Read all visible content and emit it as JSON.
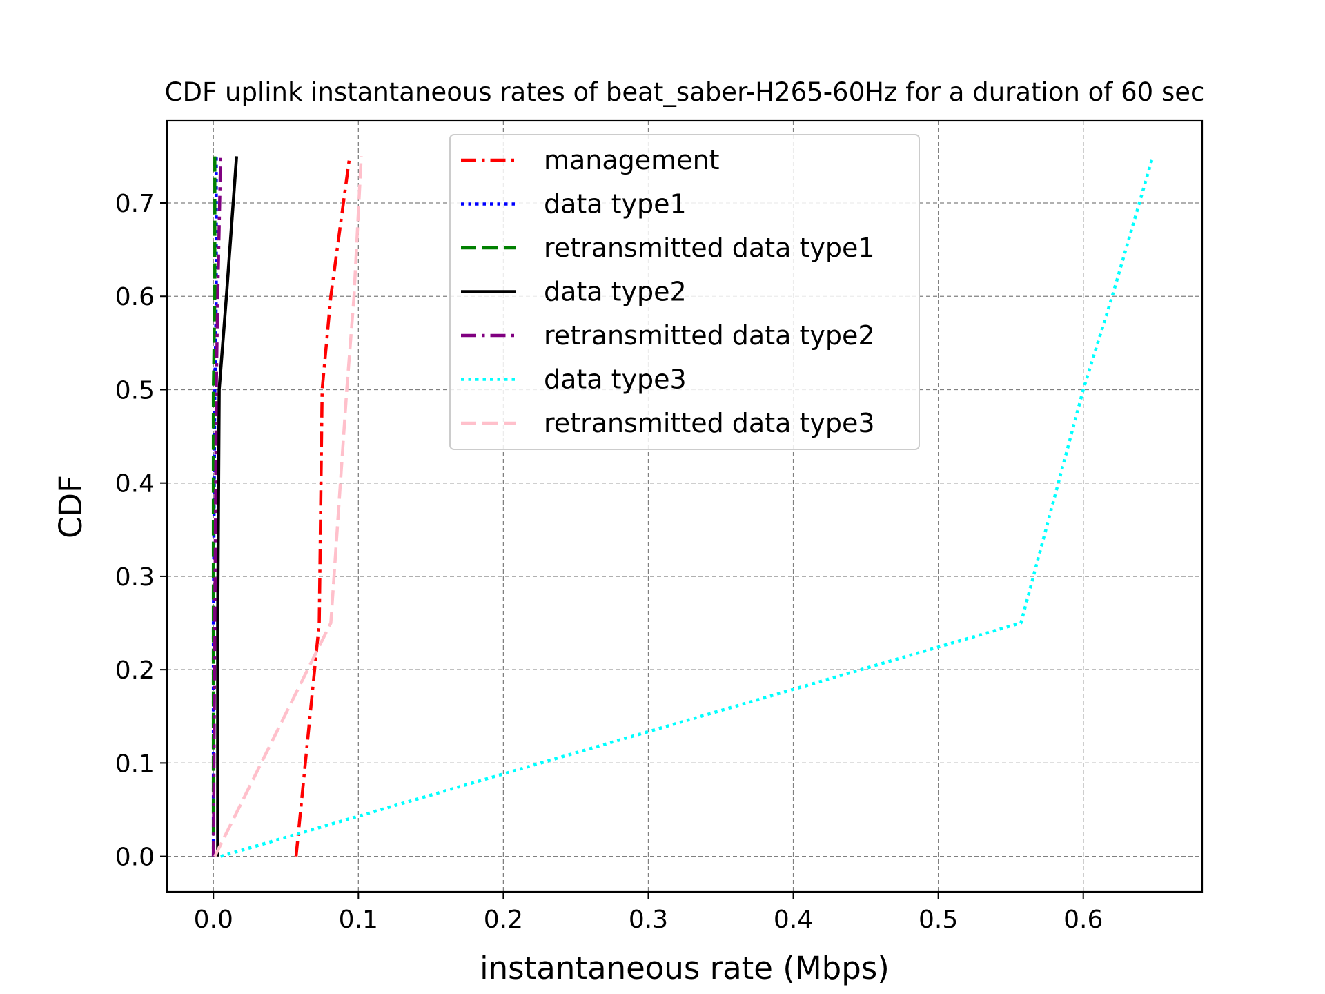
{
  "chart_data": {
    "type": "line",
    "title": "CDF uplink instantaneous rates of beat_saber-H265-60Hz for a duration of 60 sec",
    "xlabel": "instantaneous rate (Mbps)",
    "ylabel": "CDF",
    "xlim": [
      -0.032,
      0.682
    ],
    "ylim": [
      -0.038,
      0.788
    ],
    "xticks": [
      0.0,
      0.1,
      0.2,
      0.3,
      0.4,
      0.5,
      0.6
    ],
    "xtick_labels": [
      "0.0",
      "0.1",
      "0.2",
      "0.3",
      "0.4",
      "0.5",
      "0.6"
    ],
    "yticks": [
      0.0,
      0.1,
      0.2,
      0.3,
      0.4,
      0.5,
      0.6,
      0.7
    ],
    "ytick_labels": [
      "0.0",
      "0.1",
      "0.2",
      "0.3",
      "0.4",
      "0.5",
      "0.6",
      "0.7"
    ],
    "grid": true,
    "legend_position": "top-center",
    "series": [
      {
        "name": "management",
        "color": "#ff0000",
        "style": "dashdot",
        "x": [
          0.057,
          0.073,
          0.075,
          0.081,
          0.094
        ],
        "y": [
          0.0,
          0.25,
          0.5,
          0.6,
          0.75
        ]
      },
      {
        "name": "data type1",
        "color": "#0000ff",
        "style": "dotted",
        "x": [
          0.0,
          0.0,
          0.001,
          0.002,
          0.002
        ],
        "y": [
          0.0,
          0.25,
          0.5,
          0.6,
          0.75
        ]
      },
      {
        "name": "retransmitted data type1",
        "color": "#008000",
        "style": "dashed",
        "x": [
          0.0,
          0.0,
          0.0,
          0.001,
          0.001
        ],
        "y": [
          0.0,
          0.25,
          0.5,
          0.6,
          0.75
        ]
      },
      {
        "name": "data type2",
        "color": "#000000",
        "style": "solid",
        "x": [
          0.003,
          0.003,
          0.004,
          0.009,
          0.016
        ],
        "y": [
          0.0,
          0.25,
          0.5,
          0.6,
          0.75
        ]
      },
      {
        "name": "retransmitted data type2",
        "color": "#800080",
        "style": "dashdot",
        "x": [
          0.0,
          0.001,
          0.002,
          0.003,
          0.005
        ],
        "y": [
          0.0,
          0.25,
          0.5,
          0.6,
          0.75
        ]
      },
      {
        "name": "data type3",
        "color": "#00ffff",
        "style": "dotted",
        "x": [
          0.005,
          0.557,
          0.6,
          0.62,
          0.648
        ],
        "y": [
          0.0,
          0.25,
          0.5,
          0.6,
          0.75
        ]
      },
      {
        "name": "retransmitted data type3",
        "color": "#ffc0cb",
        "style": "dashed",
        "x": [
          0.001,
          0.081,
          0.092,
          0.097,
          0.102
        ],
        "y": [
          0.0,
          0.25,
          0.5,
          0.6,
          0.75
        ]
      }
    ]
  }
}
